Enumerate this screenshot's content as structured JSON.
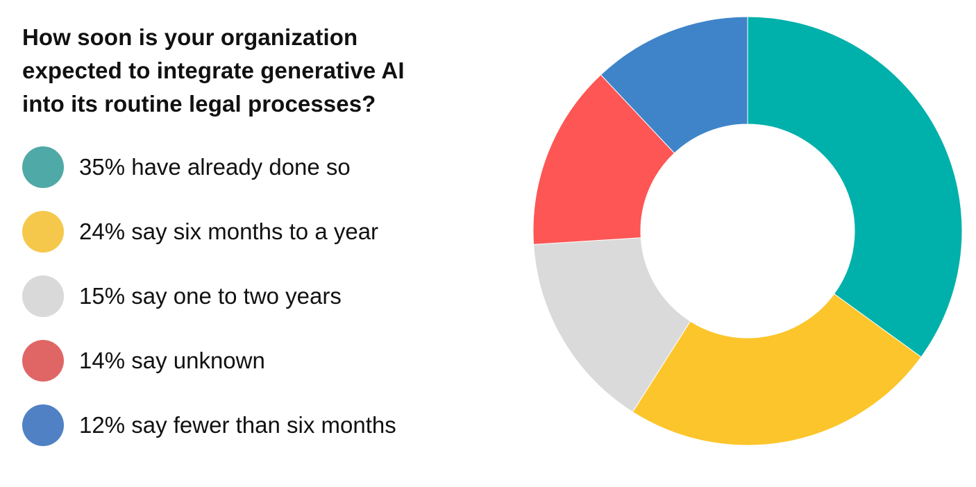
{
  "title_lines": [
    "How soon is your organization",
    "expected to integrate generative AI",
    "into its routine legal processes?"
  ],
  "legend": [
    {
      "label": "35% have already done so",
      "color": "#4fa9a6"
    },
    {
      "label": "24% say six months to a year",
      "color": "#f5c84c"
    },
    {
      "label": "15% say one to two years",
      "color": "#d9d9d9"
    },
    {
      "label": "14% say unknown",
      "color": "#e06666"
    },
    {
      "label": "12% say fewer than six months",
      "color": "#4f81c4"
    }
  ],
  "chart_data": {
    "type": "pie",
    "donut": true,
    "title": "How soon is your organization expected to integrate generative AI into its routine legal processes?",
    "start": "top, clockwise",
    "slices": [
      {
        "label": "35% have already done so",
        "value": 35,
        "color": "#00b0aa"
      },
      {
        "label": "24% say six months to a year",
        "value": 24,
        "color": "#fcc52b"
      },
      {
        "label": "15% say one to two years",
        "value": 15,
        "color": "#dadada"
      },
      {
        "label": "14% say unknown",
        "value": 14,
        "color": "#fd5655"
      },
      {
        "label": "12% say fewer than six months",
        "value": 12,
        "color": "#3f84c8"
      }
    ]
  }
}
